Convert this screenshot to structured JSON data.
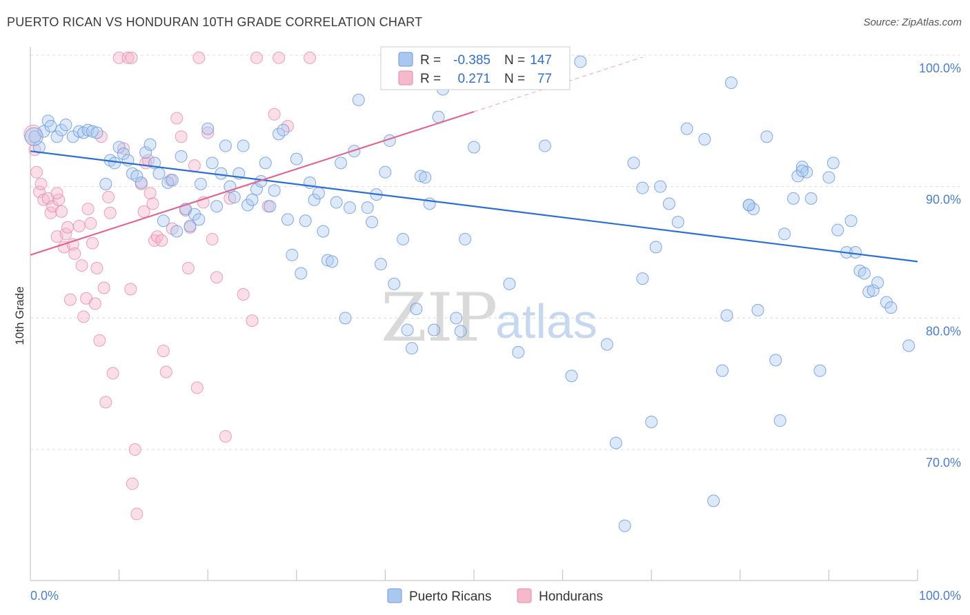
{
  "title": "PUERTO RICAN VS HONDURAN 10TH GRADE CORRELATION CHART",
  "source": "Source: ZipAtlas.com",
  "watermark": {
    "zip": "ZIP",
    "atlas": "atlas"
  },
  "colors": {
    "blue": "#6a9ae0",
    "blue_fill": "#aac7f0",
    "blue_line": "#2a6ed3",
    "pink": "#e68aa6",
    "pink_fill": "#f5b9cb",
    "pink_line": "#e0688f",
    "tick_label": "#4a7fd0",
    "grid": "#dcdcdc"
  },
  "legend": {
    "rows": [
      {
        "r_label": "R =",
        "r_value": "-0.385",
        "n_label": "N =",
        "n_value": "147",
        "series": "Puerto Ricans"
      },
      {
        "r_label": "R =",
        "r_value": "0.271",
        "n_label": "N =",
        "n_value": "77",
        "series": "Hondurans"
      }
    ]
  },
  "bottom_legend": [
    "Puerto Ricans",
    "Hondurans"
  ],
  "chart_data": {
    "type": "scatter",
    "title": "PUERTO RICAN VS HONDURAN 10TH GRADE CORRELATION CHART",
    "xlabel": "",
    "ylabel": "10th Grade",
    "xlim": [
      0,
      100
    ],
    "ylim": [
      60,
      102
    ],
    "x_tick_labels": [
      "0.0%",
      "100.0%"
    ],
    "y_ticks": [
      70,
      80,
      90,
      100
    ],
    "y_tick_labels": [
      "70.0%",
      "80.0%",
      "90.0%",
      "100.0%"
    ],
    "grid": true,
    "series": [
      {
        "name": "Puerto Ricans",
        "trend": {
          "x0": 0,
          "y0": 92.7,
          "x1": 100,
          "y1": 84.3
        },
        "points": [
          [
            0.5,
            93.8
          ],
          [
            1,
            93
          ],
          [
            1.5,
            94.2
          ],
          [
            2,
            95
          ],
          [
            2.3,
            94.6
          ],
          [
            3,
            93.8
          ],
          [
            3.5,
            94.3
          ],
          [
            4,
            94.7
          ],
          [
            4.8,
            93.8
          ],
          [
            5.5,
            94.2
          ],
          [
            6,
            94.1
          ],
          [
            6.5,
            94.3
          ],
          [
            7,
            94.2
          ],
          [
            7.5,
            94.1
          ],
          [
            8.5,
            90.2
          ],
          [
            9,
            92
          ],
          [
            9.5,
            91.8
          ],
          [
            10,
            93
          ],
          [
            10.5,
            92.5
          ],
          [
            11,
            92
          ],
          [
            11.5,
            91
          ],
          [
            12,
            90.8
          ],
          [
            12.5,
            90.3
          ],
          [
            13,
            92.6
          ],
          [
            13.5,
            93.2
          ],
          [
            14,
            91.8
          ],
          [
            14.5,
            91
          ],
          [
            15,
            87.4
          ],
          [
            15.5,
            90.3
          ],
          [
            16,
            90.5
          ],
          [
            16.5,
            86.6
          ],
          [
            17,
            92.3
          ],
          [
            17.5,
            88.3
          ],
          [
            18,
            87
          ],
          [
            18.5,
            87.9
          ],
          [
            19,
            87.5
          ],
          [
            19.2,
            90.2
          ],
          [
            20,
            94.4
          ],
          [
            20.5,
            91.8
          ],
          [
            21,
            88.5
          ],
          [
            21.5,
            91
          ],
          [
            22,
            93.1
          ],
          [
            22.5,
            90
          ],
          [
            23,
            89.2
          ],
          [
            23.5,
            91
          ],
          [
            24,
            93.1
          ],
          [
            24.5,
            88.6
          ],
          [
            25,
            89
          ],
          [
            25.5,
            89.8
          ],
          [
            26,
            90.4
          ],
          [
            26.5,
            91.8
          ],
          [
            27,
            88.5
          ],
          [
            27.5,
            89.7
          ],
          [
            28,
            94
          ],
          [
            28.5,
            94.3
          ],
          [
            29,
            87.5
          ],
          [
            29.5,
            84.8
          ],
          [
            30,
            92.1
          ],
          [
            30.5,
            83.4
          ],
          [
            31,
            87.4
          ],
          [
            31.5,
            90.3
          ],
          [
            32,
            89
          ],
          [
            32.5,
            89.5
          ],
          [
            33,
            86.6
          ],
          [
            33.5,
            84.4
          ],
          [
            34,
            84.3
          ],
          [
            34.5,
            88.8
          ],
          [
            35,
            91.8
          ],
          [
            35.5,
            80
          ],
          [
            36,
            88.4
          ],
          [
            36.5,
            92.7
          ],
          [
            37,
            96.6
          ],
          [
            38,
            88.4
          ],
          [
            38.5,
            87.3
          ],
          [
            39,
            89.4
          ],
          [
            39.5,
            84.1
          ],
          [
            40,
            91.1
          ],
          [
            40.5,
            93.5
          ],
          [
            41,
            82.6
          ],
          [
            42,
            86
          ],
          [
            42.5,
            79.1
          ],
          [
            43,
            77.7
          ],
          [
            43.5,
            80.7
          ],
          [
            44,
            90.8
          ],
          [
            44.5,
            90.7
          ],
          [
            45,
            88.7
          ],
          [
            45.5,
            79.1
          ],
          [
            46,
            95.3
          ],
          [
            46.5,
            97.4
          ],
          [
            47,
            99
          ],
          [
            48,
            80
          ],
          [
            48.5,
            79
          ],
          [
            49,
            86
          ],
          [
            50,
            93
          ],
          [
            52,
            99.5
          ],
          [
            54,
            82.6
          ],
          [
            55,
            77.4
          ],
          [
            57,
            99.8
          ],
          [
            58,
            93.1
          ],
          [
            60,
            100
          ],
          [
            61,
            75.6
          ],
          [
            62,
            99.5
          ],
          [
            66,
            70.5
          ],
          [
            67,
            64.2
          ],
          [
            68,
            91.8
          ],
          [
            69,
            89.9
          ],
          [
            70,
            72.1
          ],
          [
            70.5,
            85.4
          ],
          [
            72,
            88.7
          ],
          [
            73,
            87.3
          ],
          [
            74,
            94.4
          ],
          [
            76,
            93.6
          ],
          [
            77,
            66.1
          ],
          [
            78,
            76
          ],
          [
            78.5,
            80.2
          ],
          [
            79,
            97.9
          ],
          [
            81,
            88.6
          ],
          [
            81.5,
            88.3
          ],
          [
            82,
            80.6
          ],
          [
            83,
            93.8
          ],
          [
            84,
            76.8
          ],
          [
            84.5,
            72.2
          ],
          [
            85,
            86.4
          ],
          [
            86,
            89.1
          ],
          [
            86.5,
            90.8
          ],
          [
            87,
            91.5
          ],
          [
            87.5,
            91.1
          ],
          [
            88,
            89.1
          ],
          [
            89,
            76
          ],
          [
            90,
            90.7
          ],
          [
            90.5,
            91.8
          ],
          [
            91,
            86.7
          ],
          [
            92,
            85
          ],
          [
            92.5,
            87.4
          ],
          [
            93,
            85
          ],
          [
            93.5,
            83.6
          ],
          [
            94,
            83.4
          ],
          [
            94.5,
            82
          ],
          [
            95,
            82.1
          ],
          [
            95.5,
            82.7
          ],
          [
            96.5,
            81.2
          ],
          [
            97,
            80.8
          ],
          [
            99,
            77.9
          ],
          [
            87,
            91.2
          ],
          [
            81,
            88.6
          ],
          [
            71,
            90
          ],
          [
            65,
            78
          ],
          [
            69,
            83
          ]
        ]
      },
      {
        "name": "Hondurans",
        "trend": {
          "x0": 0,
          "y0": 84.8,
          "x1": 50,
          "y1": 95.7
        },
        "points": [
          [
            0.5,
            92.8
          ],
          [
            0.7,
            91.1
          ],
          [
            1,
            89.6
          ],
          [
            1.2,
            90.2
          ],
          [
            1.5,
            89
          ],
          [
            2,
            89.1
          ],
          [
            2.3,
            88
          ],
          [
            2.5,
            88.5
          ],
          [
            3,
            86.2
          ],
          [
            3.2,
            89
          ],
          [
            3.5,
            88.1
          ],
          [
            3.8,
            85.4
          ],
          [
            4,
            86.4
          ],
          [
            4.2,
            86.9
          ],
          [
            4.5,
            81.4
          ],
          [
            4.8,
            85.6
          ],
          [
            5,
            84.9
          ],
          [
            5.5,
            87
          ],
          [
            5.8,
            84
          ],
          [
            6,
            80.1
          ],
          [
            6.3,
            81.5
          ],
          [
            6.5,
            88.3
          ],
          [
            6.8,
            87.2
          ],
          [
            7,
            85.7
          ],
          [
            7.3,
            81.1
          ],
          [
            7.5,
            83.8
          ],
          [
            7.8,
            78.3
          ],
          [
            8,
            93.8
          ],
          [
            8.3,
            82.3
          ],
          [
            8.5,
            73.6
          ],
          [
            8.8,
            89.2
          ],
          [
            9,
            88
          ],
          [
            9.3,
            75.8
          ],
          [
            10,
            99.8
          ],
          [
            10.5,
            92.9
          ],
          [
            11,
            99.8
          ],
          [
            11.3,
            82.2
          ],
          [
            11.5,
            67.4
          ],
          [
            11.8,
            70
          ],
          [
            12,
            65.1
          ],
          [
            12.5,
            90.2
          ],
          [
            12.8,
            88.1
          ],
          [
            13,
            91.8
          ],
          [
            13.5,
            89.5
          ],
          [
            13.8,
            88.7
          ],
          [
            14,
            85.9
          ],
          [
            14.3,
            86.2
          ],
          [
            14.8,
            85.9
          ],
          [
            15,
            77.5
          ],
          [
            15.3,
            75.9
          ],
          [
            15.8,
            90.5
          ],
          [
            16,
            86.8
          ],
          [
            16.5,
            95.2
          ],
          [
            17,
            93.8
          ],
          [
            17.5,
            88.2
          ],
          [
            17.8,
            83.8
          ],
          [
            18,
            86.9
          ],
          [
            18.5,
            91.6
          ],
          [
            18.8,
            74.7
          ],
          [
            19,
            99.8
          ],
          [
            20,
            94.1
          ],
          [
            21,
            83.1
          ],
          [
            22,
            71
          ],
          [
            24,
            81.8
          ],
          [
            25,
            79.8
          ],
          [
            25.5,
            99.8
          ],
          [
            27.5,
            95.5
          ],
          [
            28,
            99.8
          ],
          [
            29,
            94.6
          ],
          [
            26.8,
            88.5
          ],
          [
            22.5,
            89.1
          ],
          [
            11.4,
            99.8
          ],
          [
            31.5,
            99.8
          ],
          [
            19.5,
            88.8
          ],
          [
            20.5,
            86
          ],
          [
            13.3,
            92
          ],
          [
            3,
            89.5
          ]
        ]
      }
    ]
  }
}
